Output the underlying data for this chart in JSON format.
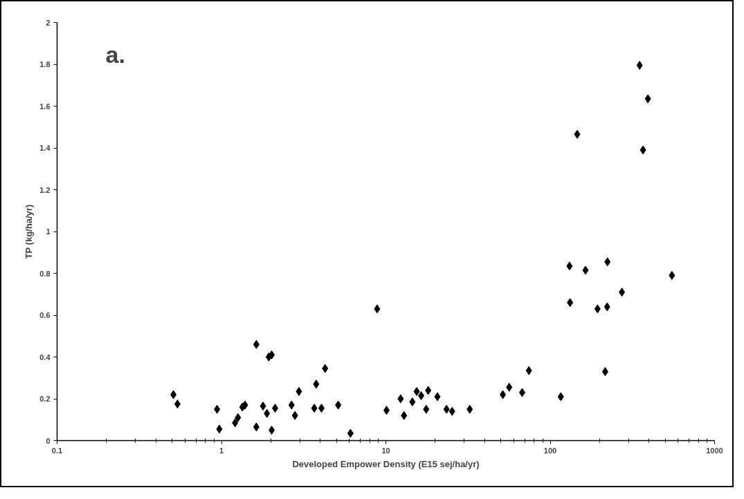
{
  "chart_data": {
    "type": "scatter",
    "xlabel": "Developed Empower Density (E15 sej/ha/yr)",
    "ylabel": "TP (kg/ha/yr)",
    "annotations": [
      "a."
    ],
    "log": "x",
    "xlim": [
      0.1,
      1000
    ],
    "xticks": [
      0.1,
      1,
      10,
      100,
      1000
    ],
    "ylim": [
      0,
      2
    ],
    "yticks": [
      0,
      0.2,
      0.4,
      0.6,
      0.8,
      1,
      1.2,
      1.4,
      1.6,
      1.8,
      2
    ],
    "grid": false,
    "marker": "diamond",
    "series": [
      {
        "color": "#000000",
        "x": [
          0.51,
          0.54,
          0.94,
          0.97,
          1.21,
          1.26,
          1.34,
          1.39,
          1.63,
          1.63,
          1.79,
          1.89,
          1.94,
          2.02,
          2.02,
          2.12,
          2.67,
          2.8,
          2.96,
          3.67,
          3.77,
          4.06,
          4.27,
          5.13,
          6.09,
          8.85,
          10.1,
          12.3,
          12.9,
          14.5,
          15.4,
          16.4,
          17.6,
          18.1,
          20.6,
          23.4,
          25.3,
          32.4,
          51.5,
          56.3,
          67.5,
          74.2,
          116,
          132,
          194,
          222,
          216,
          273,
          350,
          393,
          146,
          367,
          131,
          164,
          223,
          550
        ],
        "values": [
          0.22,
          0.175,
          0.15,
          0.055,
          0.085,
          0.11,
          0.16,
          0.17,
          0.46,
          0.065,
          0.165,
          0.13,
          0.4,
          0.41,
          0.05,
          0.155,
          0.17,
          0.12,
          0.235,
          0.155,
          0.27,
          0.155,
          0.345,
          0.17,
          0.035,
          0.63,
          0.145,
          0.2,
          0.12,
          0.185,
          0.235,
          0.215,
          0.15,
          0.24,
          0.21,
          0.15,
          0.14,
          0.15,
          0.22,
          0.255,
          0.23,
          0.335,
          0.21,
          0.66,
          0.63,
          0.64,
          0.33,
          0.71,
          1.795,
          1.635,
          1.465,
          1.39,
          0.835,
          0.815,
          0.855,
          0.79
        ]
      }
    ]
  }
}
